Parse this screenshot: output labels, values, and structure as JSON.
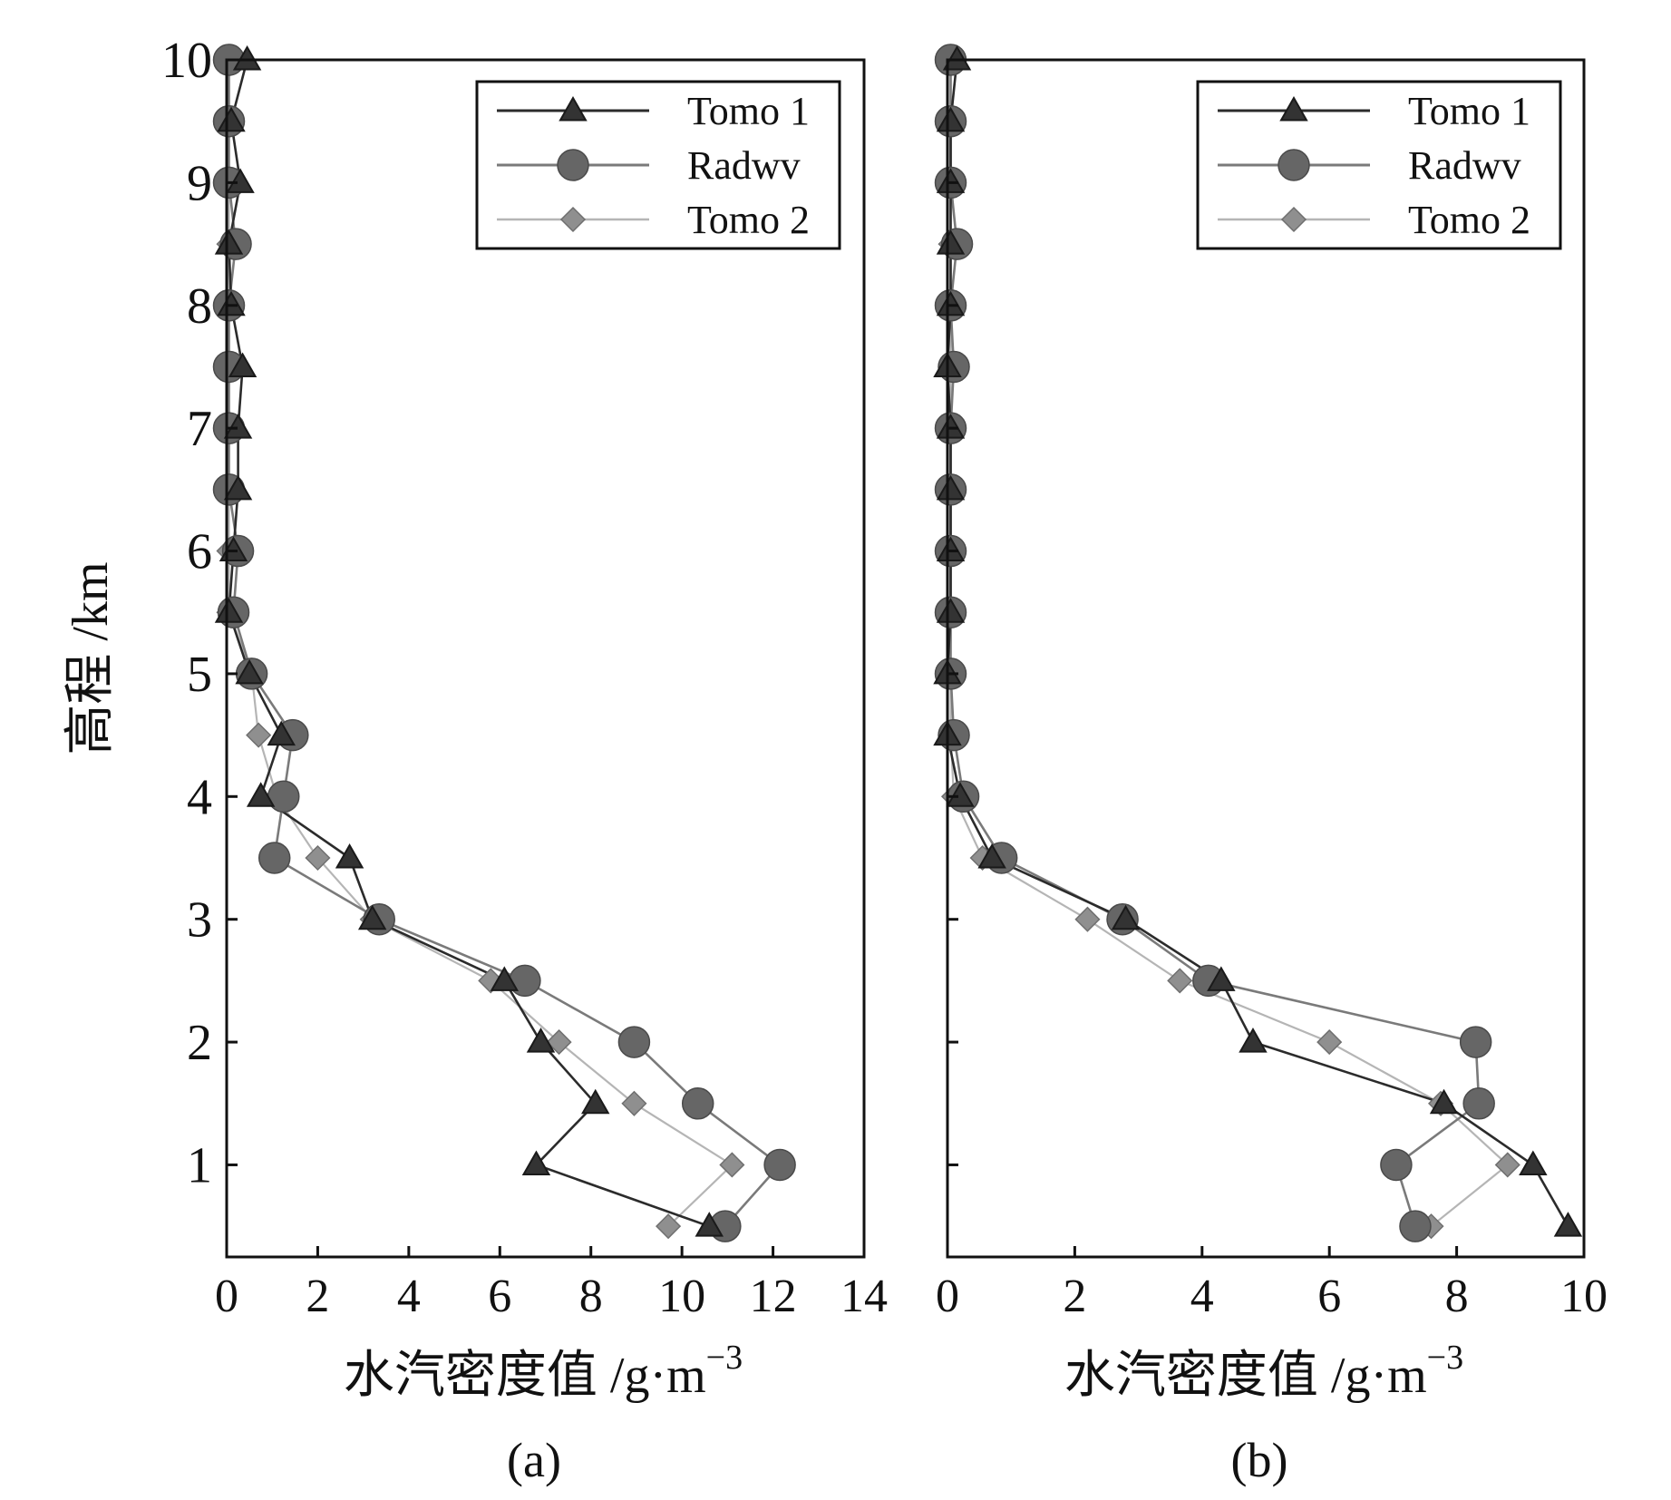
{
  "chart_data": [
    {
      "type": "line",
      "panel_label": "(a)",
      "xlabel": "水汽密度值 /g·m",
      "xlabel_sup": "−3",
      "ylabel": "高程 /km",
      "xlim": [
        0,
        14
      ],
      "ylim": [
        0.25,
        10
      ],
      "xticks": [
        0,
        2,
        4,
        6,
        8,
        10,
        12,
        14
      ],
      "yticks": [
        1,
        2,
        3,
        4,
        5,
        6,
        7,
        8,
        9,
        10
      ],
      "legend_position": "top-right",
      "series": [
        {
          "name": "Tomo 1",
          "marker": "triangle",
          "color": "#2b2b2b",
          "x": [
            0.45,
            0.1,
            0.3,
            0.05,
            0.1,
            0.35,
            0.25,
            0.25,
            0.15,
            0.05,
            0.5,
            1.2,
            0.75,
            2.7,
            3.2,
            6.1,
            6.9,
            8.1,
            6.8,
            10.6
          ],
          "y": [
            10,
            9.5,
            9,
            8.5,
            8,
            7.5,
            7,
            6.5,
            6,
            5.5,
            5,
            4.5,
            4,
            3.5,
            3,
            2.5,
            2,
            1.5,
            1,
            0.5
          ]
        },
        {
          "name": "Radwv",
          "marker": "circle",
          "color": "#6b6b6b",
          "x": [
            0.05,
            0.05,
            0.05,
            0.2,
            0.05,
            0.05,
            0.05,
            0.05,
            0.25,
            0.15,
            0.55,
            1.45,
            1.25,
            1.05,
            3.35,
            6.55,
            8.95,
            10.35,
            12.15,
            10.95
          ],
          "y": [
            10,
            9.5,
            9,
            8.5,
            8,
            7.5,
            7,
            6.5,
            6,
            5.5,
            5,
            4.5,
            4,
            3.5,
            3,
            2.5,
            2,
            1.5,
            1,
            0.5
          ]
        },
        {
          "name": "Tomo 2",
          "marker": "diamond",
          "color": "#8c8c8c",
          "x": [
            0.05,
            0.05,
            0.05,
            0.05,
            0.05,
            0.05,
            0.05,
            0.05,
            0.05,
            0.05,
            0.55,
            0.7,
            1.1,
            2.0,
            3.2,
            5.8,
            7.3,
            8.95,
            11.1,
            9.7
          ],
          "y": [
            10,
            9.5,
            9,
            8.5,
            8,
            7.5,
            7,
            6.5,
            6,
            5.5,
            5,
            4.5,
            4,
            3.5,
            3,
            2.5,
            2,
            1.5,
            1,
            0.5
          ]
        }
      ]
    },
    {
      "type": "line",
      "panel_label": "(b)",
      "xlabel": "水汽密度值 /g·m",
      "xlabel_sup": "−3",
      "ylabel": "",
      "xlim": [
        0,
        10
      ],
      "ylim": [
        0.25,
        10
      ],
      "xticks": [
        0,
        2,
        4,
        6,
        8,
        10
      ],
      "yticks": [
        1,
        2,
        3,
        4,
        5,
        6,
        7,
        8,
        9,
        10
      ],
      "legend_position": "top-right",
      "series": [
        {
          "name": "Tomo 1",
          "marker": "triangle",
          "color": "#2b2b2b",
          "x": [
            0.15,
            0.05,
            0.05,
            0.05,
            0.05,
            0.0,
            0.05,
            0.05,
            0.05,
            0.05,
            0.0,
            0.0,
            0.2,
            0.7,
            2.8,
            4.3,
            4.8,
            7.8,
            9.2,
            9.75
          ],
          "y": [
            10,
            9.5,
            9,
            8.5,
            8,
            7.5,
            7,
            6.5,
            6,
            5.5,
            5,
            4.5,
            4,
            3.5,
            3,
            2.5,
            2,
            1.5,
            1,
            0.5
          ]
        },
        {
          "name": "Radwv",
          "marker": "circle",
          "color": "#6b6b6b",
          "x": [
            0.05,
            0.05,
            0.05,
            0.15,
            0.05,
            0.1,
            0.05,
            0.05,
            0.05,
            0.05,
            0.05,
            0.1,
            0.25,
            0.85,
            2.75,
            4.1,
            8.3,
            8.35,
            7.05,
            7.35
          ],
          "y": [
            10,
            9.5,
            9,
            8.5,
            8,
            7.5,
            7,
            6.5,
            6,
            5.5,
            5,
            4.5,
            4,
            3.5,
            3,
            2.5,
            2,
            1.5,
            1,
            0.5
          ]
        },
        {
          "name": "Tomo 2",
          "marker": "diamond",
          "color": "#8c8c8c",
          "x": [
            0.05,
            0.05,
            0.05,
            0.05,
            0.05,
            0.05,
            0.05,
            0.05,
            0.05,
            0.05,
            0.05,
            0.05,
            0.1,
            0.55,
            2.2,
            3.65,
            6.0,
            7.75,
            8.8,
            7.6
          ],
          "y": [
            10,
            9.5,
            9,
            8.5,
            8,
            7.5,
            7,
            6.5,
            6,
            5.5,
            5,
            4.5,
            4,
            3.5,
            3,
            2.5,
            2,
            1.5,
            1,
            0.5
          ]
        }
      ]
    }
  ]
}
